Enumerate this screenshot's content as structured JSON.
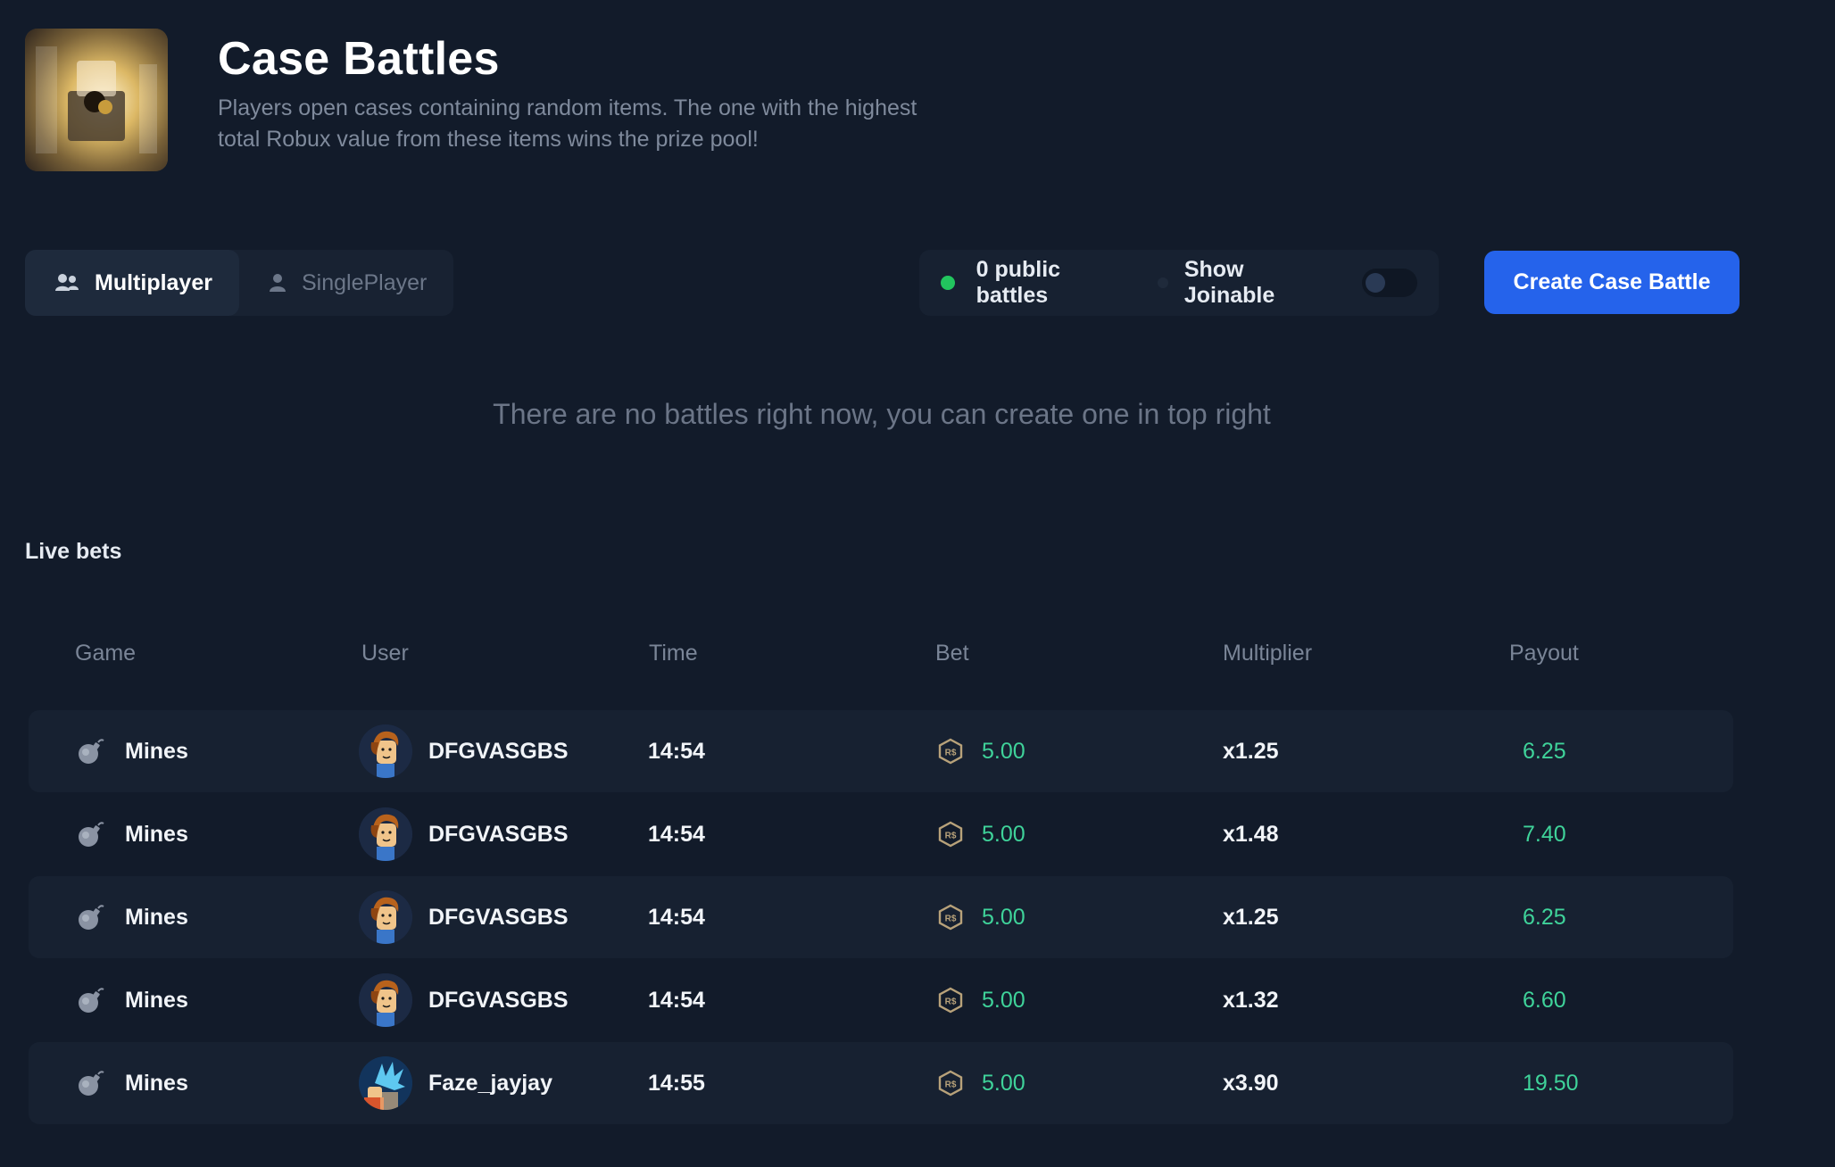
{
  "header": {
    "title": "Case Battles",
    "description": "Players open cases containing random items. The one with the highest total Robux value from these items wins the prize pool!"
  },
  "tabs": [
    {
      "label": "Multiplayer",
      "icon": "users-icon",
      "active": true
    },
    {
      "label": "SinglePlayer",
      "icon": "user-icon",
      "active": false
    }
  ],
  "status": {
    "public_battles": "0 public battles",
    "show_joinable_label": "Show Joinable",
    "show_joinable": false
  },
  "create_button": "Create Case Battle",
  "empty_message": "There are no battles right now, you can create one in top right",
  "live_bets": {
    "title": "Live bets",
    "columns": [
      "Game",
      "User",
      "Time",
      "Bet",
      "Multiplier",
      "Payout"
    ],
    "rows": [
      {
        "game": "Mines",
        "user": "DFGVASGBS",
        "time": "14:54",
        "bet": "5.00",
        "multiplier": "x1.25",
        "payout": "6.25",
        "avatar": "bacon-hair-avatar"
      },
      {
        "game": "Mines",
        "user": "DFGVASGBS",
        "time": "14:54",
        "bet": "5.00",
        "multiplier": "x1.48",
        "payout": "7.40",
        "avatar": "bacon-hair-avatar"
      },
      {
        "game": "Mines",
        "user": "DFGVASGBS",
        "time": "14:54",
        "bet": "5.00",
        "multiplier": "x1.25",
        "payout": "6.25",
        "avatar": "bacon-hair-avatar"
      },
      {
        "game": "Mines",
        "user": "DFGVASGBS",
        "time": "14:54",
        "bet": "5.00",
        "multiplier": "x1.32",
        "payout": "6.60",
        "avatar": "bacon-hair-avatar"
      },
      {
        "game": "Mines",
        "user": "Faze_jayjay",
        "time": "14:55",
        "bet": "5.00",
        "multiplier": "x3.90",
        "payout": "19.50",
        "avatar": "blue-hair-avatar"
      }
    ]
  },
  "colors": {
    "background": "#121b2a",
    "accent": "#2563eb",
    "payout_green": "#3fd39a",
    "status_dot": "#22c55e"
  }
}
